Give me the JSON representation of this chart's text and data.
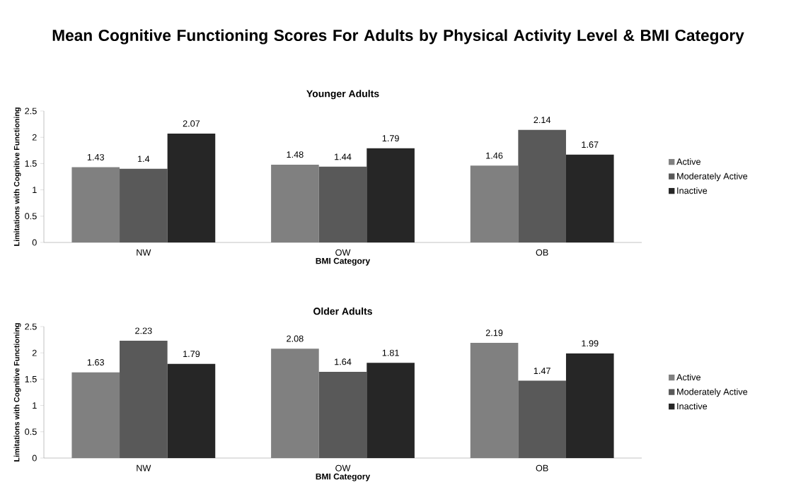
{
  "chart_data": [
    {
      "type": "bar",
      "title": "Mean Cognitive Functioning Scores For Adults by Physical Activity Level & BMI Category",
      "subtitle": "Younger Adults",
      "xlabel": "BMI Category",
      "ylabel": "Limitations with Cognitive Functioning",
      "categories": [
        "NW",
        "OW",
        "OB"
      ],
      "series": [
        {
          "name": "Active",
          "color": "#808080",
          "values": [
            1.43,
            1.48,
            1.46
          ]
        },
        {
          "name": "Moderately Active",
          "color": "#595959",
          "values": [
            1.4,
            1.44,
            2.14
          ]
        },
        {
          "name": "Inactive",
          "color": "#262626",
          "values": [
            2.07,
            1.79,
            1.67
          ]
        }
      ],
      "ylim": [
        0,
        2.5
      ],
      "yticks": [
        0,
        0.5,
        1,
        1.5,
        2,
        2.5
      ],
      "data_labels": true,
      "legend": "right"
    },
    {
      "type": "bar",
      "title": "Older Adults",
      "xlabel": "BMI Category",
      "ylabel": "Limitations with Cognitive Functioning",
      "categories": [
        "NW",
        "OW",
        "OB"
      ],
      "series": [
        {
          "name": "Active",
          "color": "#808080",
          "values": [
            1.63,
            2.08,
            2.19
          ]
        },
        {
          "name": "Moderately Active",
          "color": "#595959",
          "values": [
            2.23,
            1.64,
            1.47
          ]
        },
        {
          "name": "Inactive",
          "color": "#262626",
          "values": [
            1.79,
            1.81,
            1.99
          ]
        }
      ],
      "ylim": [
        0,
        2.5
      ],
      "yticks": [
        0,
        0.5,
        1,
        1.5,
        2,
        2.5
      ],
      "data_labels": true,
      "legend": "right"
    }
  ]
}
